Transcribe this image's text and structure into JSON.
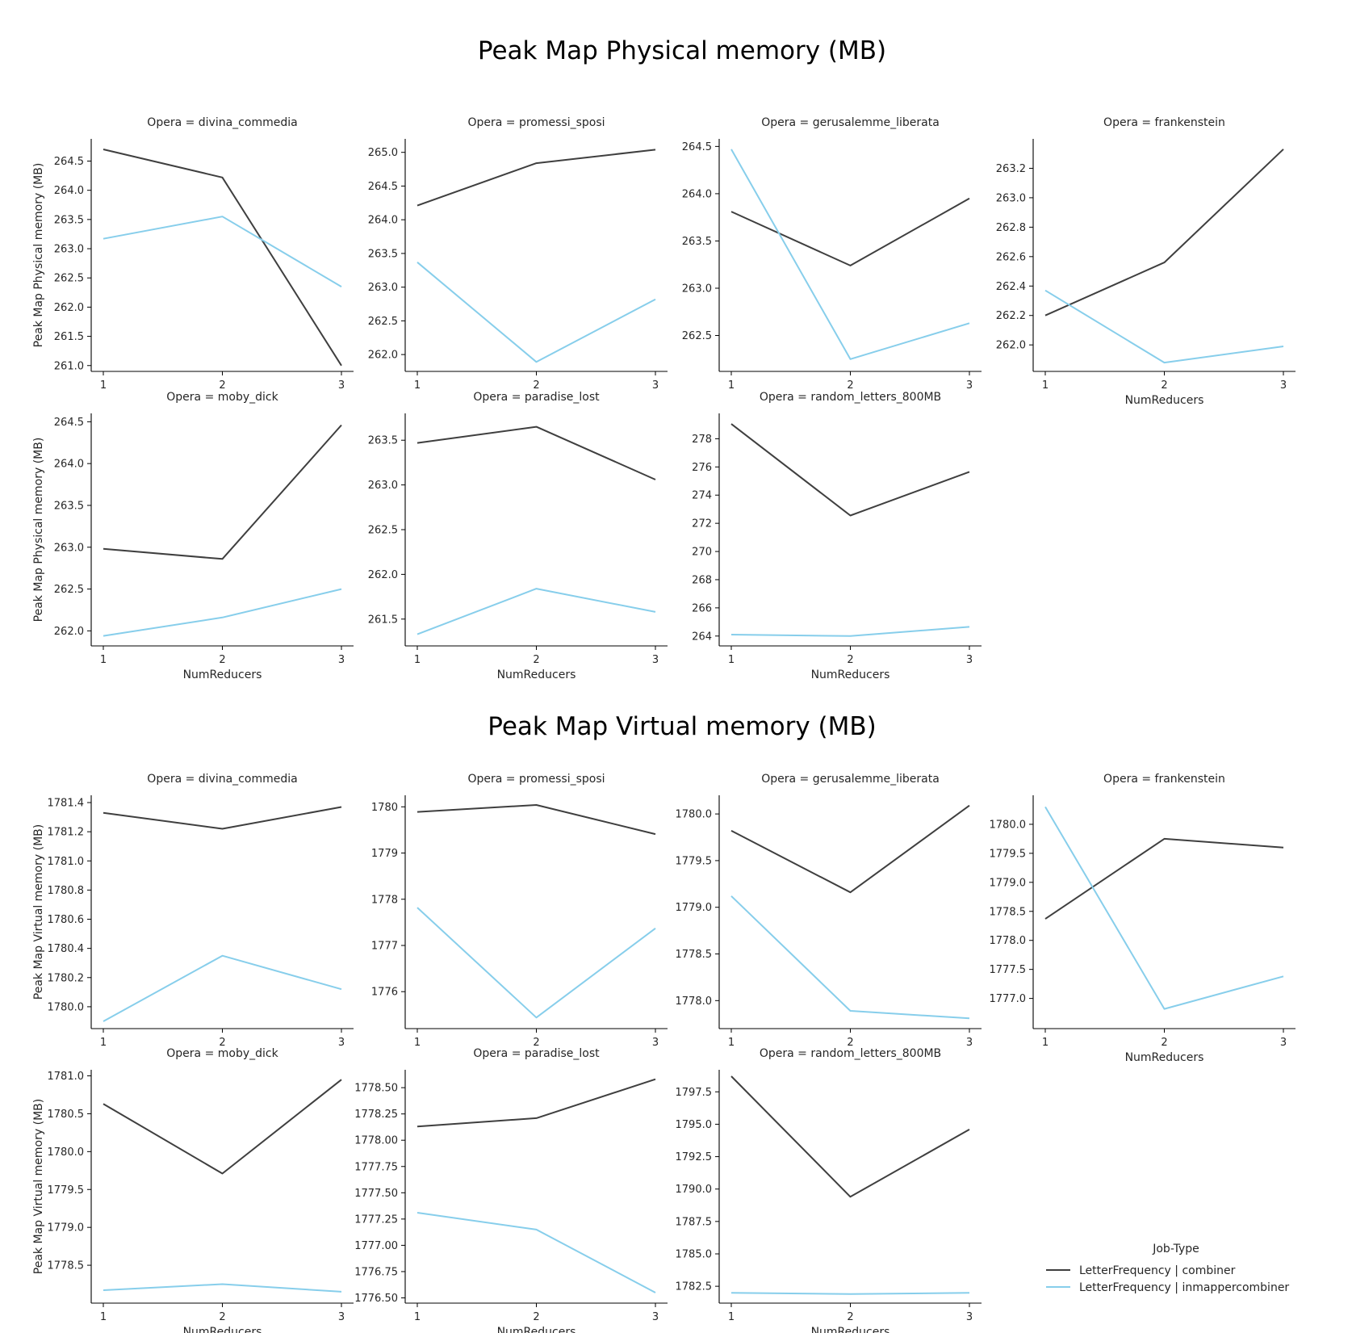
{
  "colors": {
    "combiner": "#3f3f3f",
    "inmappercombiner": "#87ceeb",
    "axis": "#000000"
  },
  "legend": {
    "title": "Job-Type",
    "entries": [
      {
        "key": "combiner",
        "label": "LetterFrequency | combiner"
      },
      {
        "key": "inmappercombiner",
        "label": "LetterFrequency | inmappercombiner"
      }
    ]
  },
  "chart_data": [
    {
      "type": "line",
      "title": "Peak Map Physical memory (MB)",
      "ylabel": "Peak Map Physical memory (MB)",
      "xlabel": "NumReducers",
      "x": [
        1,
        2,
        3
      ],
      "panels": [
        {
          "title": "Opera = divina_commedia",
          "ylim": [
            260.9,
            264.88
          ],
          "yticks": [
            261.0,
            261.5,
            262.0,
            262.5,
            263.0,
            263.5,
            264.0,
            264.5
          ],
          "series": [
            {
              "key": "combiner",
              "values": [
                264.7,
                264.22,
                261.0
              ]
            },
            {
              "key": "inmappercombiner",
              "values": [
                263.17,
                263.55,
                262.35
              ]
            }
          ]
        },
        {
          "title": "Opera = promessi_sposi",
          "ylim": [
            261.75,
            265.2
          ],
          "yticks": [
            262.0,
            262.5,
            263.0,
            263.5,
            264.0,
            264.5,
            265.0
          ],
          "series": [
            {
              "key": "combiner",
              "values": [
                264.21,
                264.84,
                265.04
              ]
            },
            {
              "key": "inmappercombiner",
              "values": [
                263.37,
                261.89,
                262.82
              ]
            }
          ]
        },
        {
          "title": "Opera = gerusalemme_liberata",
          "ylim": [
            262.12,
            264.58
          ],
          "yticks": [
            262.5,
            263.0,
            263.5,
            264.0,
            264.5
          ],
          "series": [
            {
              "key": "combiner",
              "values": [
                263.81,
                263.24,
                263.95
              ]
            },
            {
              "key": "inmappercombiner",
              "values": [
                264.47,
                262.25,
                262.63
              ]
            }
          ]
        },
        {
          "title": "Opera = frankenstein",
          "ylim": [
            261.82,
            263.4
          ],
          "yticks": [
            262.0,
            262.2,
            262.4,
            262.6,
            262.8,
            263.0,
            263.2
          ],
          "series": [
            {
              "key": "combiner",
              "values": [
                262.2,
                262.56,
                263.33
              ]
            },
            {
              "key": "inmappercombiner",
              "values": [
                262.37,
                261.88,
                261.99
              ]
            }
          ]
        },
        {
          "title": "Opera = moby_dick",
          "ylim": [
            261.82,
            264.6
          ],
          "yticks": [
            262.0,
            262.5,
            263.0,
            263.5,
            264.0,
            264.5
          ],
          "series": [
            {
              "key": "combiner",
              "values": [
                262.98,
                262.86,
                264.46
              ]
            },
            {
              "key": "inmappercombiner",
              "values": [
                261.94,
                262.16,
                262.5
              ]
            }
          ]
        },
        {
          "title": "Opera = paradise_lost",
          "ylim": [
            261.2,
            263.8
          ],
          "yticks": [
            261.5,
            262.0,
            262.5,
            263.0,
            263.5
          ],
          "series": [
            {
              "key": "combiner",
              "values": [
                263.47,
                263.65,
                263.06
              ]
            },
            {
              "key": "inmappercombiner",
              "values": [
                261.33,
                261.84,
                261.58
              ]
            }
          ]
        },
        {
          "title": "Opera = random_letters_800MB",
          "ylim": [
            263.3,
            279.8
          ],
          "yticks": [
            264,
            266,
            268,
            270,
            272,
            274,
            276,
            278
          ],
          "series": [
            {
              "key": "combiner",
              "values": [
                279.05,
                272.55,
                275.65
              ]
            },
            {
              "key": "inmappercombiner",
              "values": [
                264.1,
                264.0,
                264.65
              ]
            }
          ]
        }
      ]
    },
    {
      "type": "line",
      "title": "Peak Map Virtual memory (MB)",
      "ylabel": "Peak Map Virtual memory (MB)",
      "xlabel": "NumReducers",
      "x": [
        1,
        2,
        3
      ],
      "panels": [
        {
          "title": "Opera = divina_commedia",
          "ylim": [
            1779.85,
            1781.45
          ],
          "yticks": [
            1780.0,
            1780.2,
            1780.4,
            1780.6,
            1780.8,
            1781.0,
            1781.2,
            1781.4
          ],
          "series": [
            {
              "key": "combiner",
              "values": [
                1781.33,
                1781.22,
                1781.37
              ]
            },
            {
              "key": "inmappercombiner",
              "values": [
                1779.9,
                1780.35,
                1780.12
              ]
            }
          ]
        },
        {
          "title": "Opera = promessi_sposi",
          "ylim": [
            1775.2,
            1780.25
          ],
          "yticks": [
            1776,
            1777,
            1778,
            1779,
            1780
          ],
          "series": [
            {
              "key": "combiner",
              "values": [
                1779.89,
                1780.04,
                1779.41
              ]
            },
            {
              "key": "inmappercombiner",
              "values": [
                1777.82,
                1775.44,
                1777.37
              ]
            }
          ]
        },
        {
          "title": "Opera = gerusalemme_liberata",
          "ylim": [
            1777.7,
            1780.2
          ],
          "yticks": [
            1778.0,
            1778.5,
            1779.0,
            1779.5,
            1780.0
          ],
          "series": [
            {
              "key": "combiner",
              "values": [
                1779.82,
                1779.16,
                1780.09
              ]
            },
            {
              "key": "inmappercombiner",
              "values": [
                1779.12,
                1777.89,
                1777.81
              ]
            }
          ]
        },
        {
          "title": "Opera = frankenstein",
          "ylim": [
            1776.48,
            1780.5
          ],
          "yticks": [
            1777.0,
            1777.5,
            1778.0,
            1778.5,
            1779.0,
            1779.5,
            1780.0
          ],
          "series": [
            {
              "key": "combiner",
              "values": [
                1778.37,
                1779.75,
                1779.6
              ]
            },
            {
              "key": "inmappercombiner",
              "values": [
                1780.3,
                1776.82,
                1777.38
              ]
            }
          ]
        },
        {
          "title": "Opera = moby_dick",
          "ylim": [
            1778.0,
            1781.08
          ],
          "yticks": [
            1778.5,
            1779.0,
            1779.5,
            1780.0,
            1780.5,
            1781.0
          ],
          "series": [
            {
              "key": "combiner",
              "values": [
                1780.63,
                1779.71,
                1780.95
              ]
            },
            {
              "key": "inmappercombiner",
              "values": [
                1778.17,
                1778.25,
                1778.15
              ]
            }
          ]
        },
        {
          "title": "Opera = paradise_lost",
          "ylim": [
            1776.45,
            1778.67
          ],
          "yticks": [
            1776.5,
            1776.75,
            1777.0,
            1777.25,
            1777.5,
            1777.75,
            1778.0,
            1778.25,
            1778.5
          ],
          "series": [
            {
              "key": "combiner",
              "values": [
                1778.13,
                1778.21,
                1778.58
              ]
            },
            {
              "key": "inmappercombiner",
              "values": [
                1777.31,
                1777.15,
                1776.55
              ]
            }
          ]
        },
        {
          "title": "Opera = random_letters_800MB",
          "ylim": [
            1781.2,
            1799.2
          ],
          "yticks": [
            1782.5,
            1785.0,
            1787.5,
            1790.0,
            1792.5,
            1795.0,
            1797.5
          ],
          "series": [
            {
              "key": "combiner",
              "values": [
                1798.7,
                1789.4,
                1794.6
              ]
            },
            {
              "key": "inmappercombiner",
              "values": [
                1782.0,
                1781.9,
                1782.0
              ]
            }
          ]
        }
      ]
    }
  ]
}
